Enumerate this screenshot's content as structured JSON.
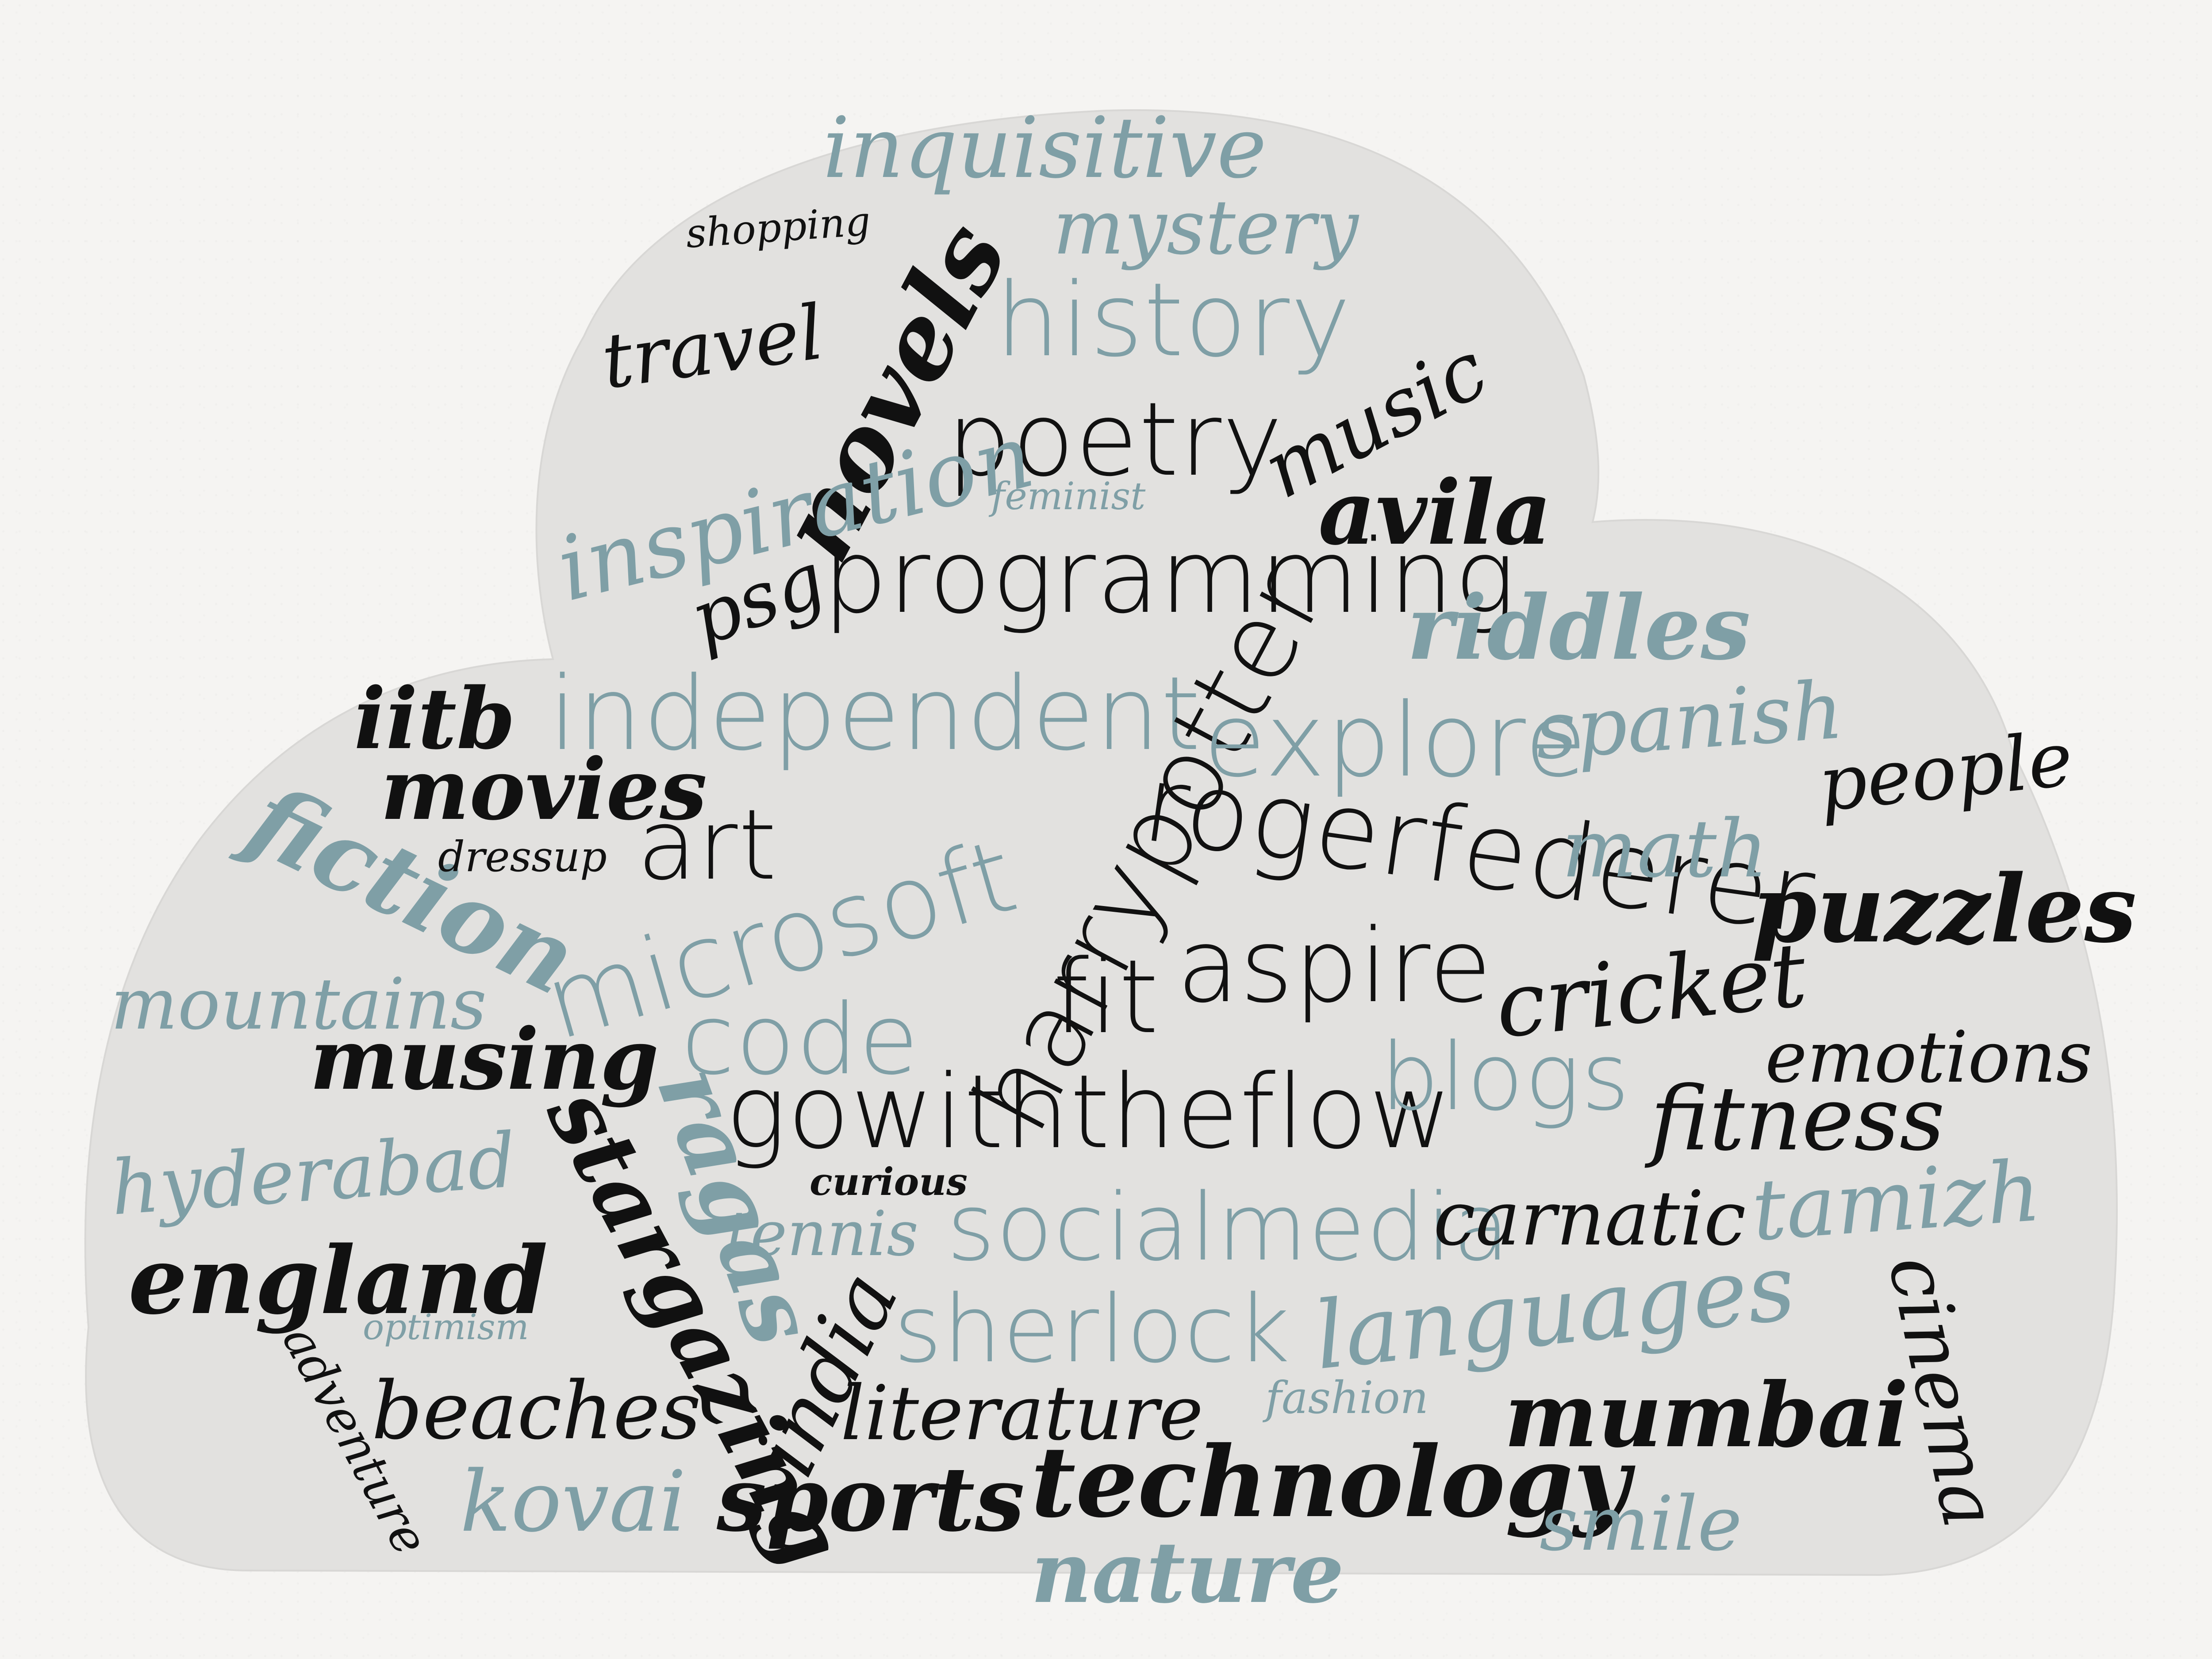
{
  "colors": {
    "paper": "#f5f4f2",
    "cloud": "#e2e1df",
    "ink": "#111111",
    "accent": "#7f9fa6"
  },
  "words": [
    "inquisitive",
    "shopping",
    "mystery",
    "history",
    "travel",
    "novels",
    "music",
    "poetry",
    "inspiration",
    "feminist",
    "avila",
    "psg",
    "programming",
    "riddles",
    "iitb",
    "independent",
    "harrypotter",
    "explore",
    "spanish",
    "movies",
    "people",
    "fiction",
    "dressup",
    "art",
    "rogerfederer",
    "math",
    "microsoft",
    "puzzles",
    "fit",
    "aspire",
    "mountains",
    "cricket",
    "code",
    "musing",
    "gowiththeflow",
    "blogs",
    "emotions",
    "ragas",
    "fitness",
    "hyderabad",
    "curious",
    "stargazing",
    "tamizh",
    "tennis",
    "socialmedia",
    "carnatic",
    "england",
    "india",
    "cinema",
    "sherlock",
    "languages",
    "optimism",
    "adventure",
    "beaches",
    "literature",
    "fashion",
    "mumbai",
    "kovai",
    "sports",
    "technology",
    "smile",
    "nature"
  ]
}
